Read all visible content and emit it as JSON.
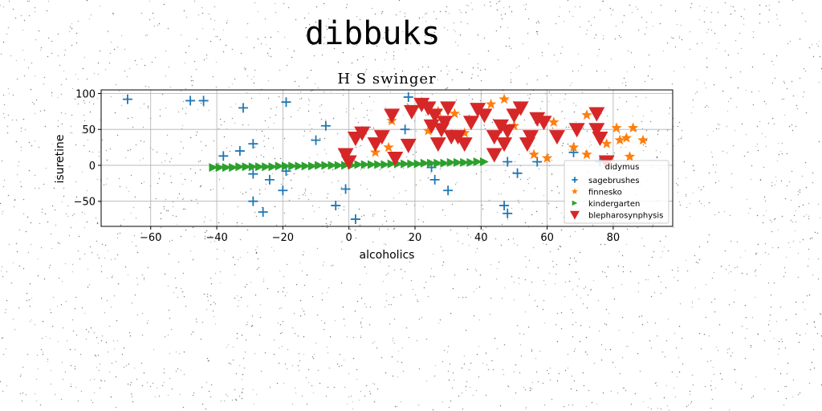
{
  "figure": {
    "suptitle": "dibbuks"
  },
  "chart_data": {
    "type": "scatter",
    "title": "H S swinger",
    "xlabel": "alcoholics",
    "ylabel": "isuretine",
    "xlim": [
      -75,
      98
    ],
    "ylim": [
      -85,
      105
    ],
    "xticks": [
      -60,
      -40,
      -20,
      0,
      20,
      40,
      60,
      80
    ],
    "yticks": [
      -50,
      0,
      50,
      100
    ],
    "grid": true,
    "legend": {
      "title": "didymus",
      "placement": "lower-right"
    },
    "series": [
      {
        "name": "sagebrushes",
        "marker": "plus",
        "color": "#1f77b4",
        "points": [
          [
            -67,
            92
          ],
          [
            -48,
            90
          ],
          [
            -44,
            90
          ],
          [
            -32,
            80
          ],
          [
            -19,
            88
          ],
          [
            -38,
            13
          ],
          [
            -33,
            20
          ],
          [
            -29,
            30
          ],
          [
            -29,
            -12
          ],
          [
            -29,
            -50
          ],
          [
            -26,
            -65
          ],
          [
            -24,
            -20
          ],
          [
            -20,
            -35
          ],
          [
            -19,
            -8
          ],
          [
            -10,
            35
          ],
          [
            -7,
            55
          ],
          [
            -4,
            -56
          ],
          [
            -1,
            -33
          ],
          [
            2,
            -75
          ],
          [
            17,
            50
          ],
          [
            18,
            95
          ],
          [
            25,
            -3
          ],
          [
            26,
            -20
          ],
          [
            30,
            -35
          ],
          [
            47,
            -56
          ],
          [
            48,
            5
          ],
          [
            48,
            -67
          ],
          [
            51,
            -11
          ],
          [
            57,
            5
          ],
          [
            68,
            18
          ],
          [
            76,
            5
          ]
        ]
      },
      {
        "name": "finnesko",
        "marker": "star",
        "color": "#ff7f0e",
        "points": [
          [
            12,
            25
          ],
          [
            13,
            62
          ],
          [
            8,
            18
          ],
          [
            22,
            88
          ],
          [
            24,
            48
          ],
          [
            27,
            75
          ],
          [
            32,
            72
          ],
          [
            35,
            45
          ],
          [
            43,
            85
          ],
          [
            47,
            92
          ],
          [
            50,
            55
          ],
          [
            56,
            15
          ],
          [
            60,
            10
          ],
          [
            62,
            60
          ],
          [
            68,
            25
          ],
          [
            72,
            70
          ],
          [
            72,
            15
          ],
          [
            78,
            30
          ],
          [
            81,
            52
          ],
          [
            82,
            35
          ],
          [
            84,
            38
          ],
          [
            85,
            12
          ],
          [
            86,
            52
          ],
          [
            89,
            35
          ]
        ]
      },
      {
        "name": "kindergarten",
        "marker": "triangle-right",
        "color": "#2ca02c",
        "points": [
          [
            -41,
            -3
          ],
          [
            -39,
            -3
          ],
          [
            -37,
            -3
          ],
          [
            -35,
            -3
          ],
          [
            -33,
            -2
          ],
          [
            -31,
            -2
          ],
          [
            -29,
            -2
          ],
          [
            -27,
            -2
          ],
          [
            -25,
            -2
          ],
          [
            -23,
            -2
          ],
          [
            -21,
            -1
          ],
          [
            -19,
            -1
          ],
          [
            -17,
            -1
          ],
          [
            -15,
            -1
          ],
          [
            -13,
            -1
          ],
          [
            -11,
            -1
          ],
          [
            -9,
            0
          ],
          [
            -7,
            0
          ],
          [
            -5,
            0
          ],
          [
            -3,
            0
          ],
          [
            -1,
            0
          ],
          [
            1,
            0
          ],
          [
            3,
            1
          ],
          [
            5,
            1
          ],
          [
            7,
            1
          ],
          [
            9,
            1
          ],
          [
            11,
            1
          ],
          [
            13,
            2
          ],
          [
            15,
            2
          ],
          [
            17,
            2
          ],
          [
            19,
            2
          ],
          [
            21,
            2
          ],
          [
            23,
            3
          ],
          [
            25,
            3
          ],
          [
            27,
            3
          ],
          [
            29,
            3
          ],
          [
            31,
            4
          ],
          [
            33,
            4
          ],
          [
            35,
            4
          ],
          [
            37,
            4
          ],
          [
            39,
            5
          ],
          [
            41,
            5
          ]
        ]
      },
      {
        "name": "blepharosynphysis",
        "marker": "triangle-down",
        "color": "#d62728",
        "points": [
          [
            -1,
            15
          ],
          [
            0,
            5
          ],
          [
            2,
            38
          ],
          [
            4,
            45
          ],
          [
            8,
            30
          ],
          [
            10,
            40
          ],
          [
            13,
            70
          ],
          [
            14,
            10
          ],
          [
            18,
            28
          ],
          [
            19,
            75
          ],
          [
            22,
            85
          ],
          [
            24,
            80
          ],
          [
            25,
            55
          ],
          [
            26,
            70
          ],
          [
            27,
            30
          ],
          [
            28,
            50
          ],
          [
            29,
            60
          ],
          [
            30,
            80
          ],
          [
            31,
            40
          ],
          [
            33,
            40
          ],
          [
            35,
            30
          ],
          [
            37,
            60
          ],
          [
            39,
            78
          ],
          [
            41,
            70
          ],
          [
            44,
            15
          ],
          [
            44,
            40
          ],
          [
            46,
            55
          ],
          [
            47,
            30
          ],
          [
            48,
            48
          ],
          [
            50,
            70
          ],
          [
            52,
            80
          ],
          [
            54,
            30
          ],
          [
            55,
            40
          ],
          [
            57,
            65
          ],
          [
            59,
            60
          ],
          [
            63,
            40
          ],
          [
            69,
            50
          ],
          [
            75,
            72
          ],
          [
            75,
            50
          ],
          [
            76,
            38
          ],
          [
            78,
            5
          ]
        ]
      }
    ]
  }
}
